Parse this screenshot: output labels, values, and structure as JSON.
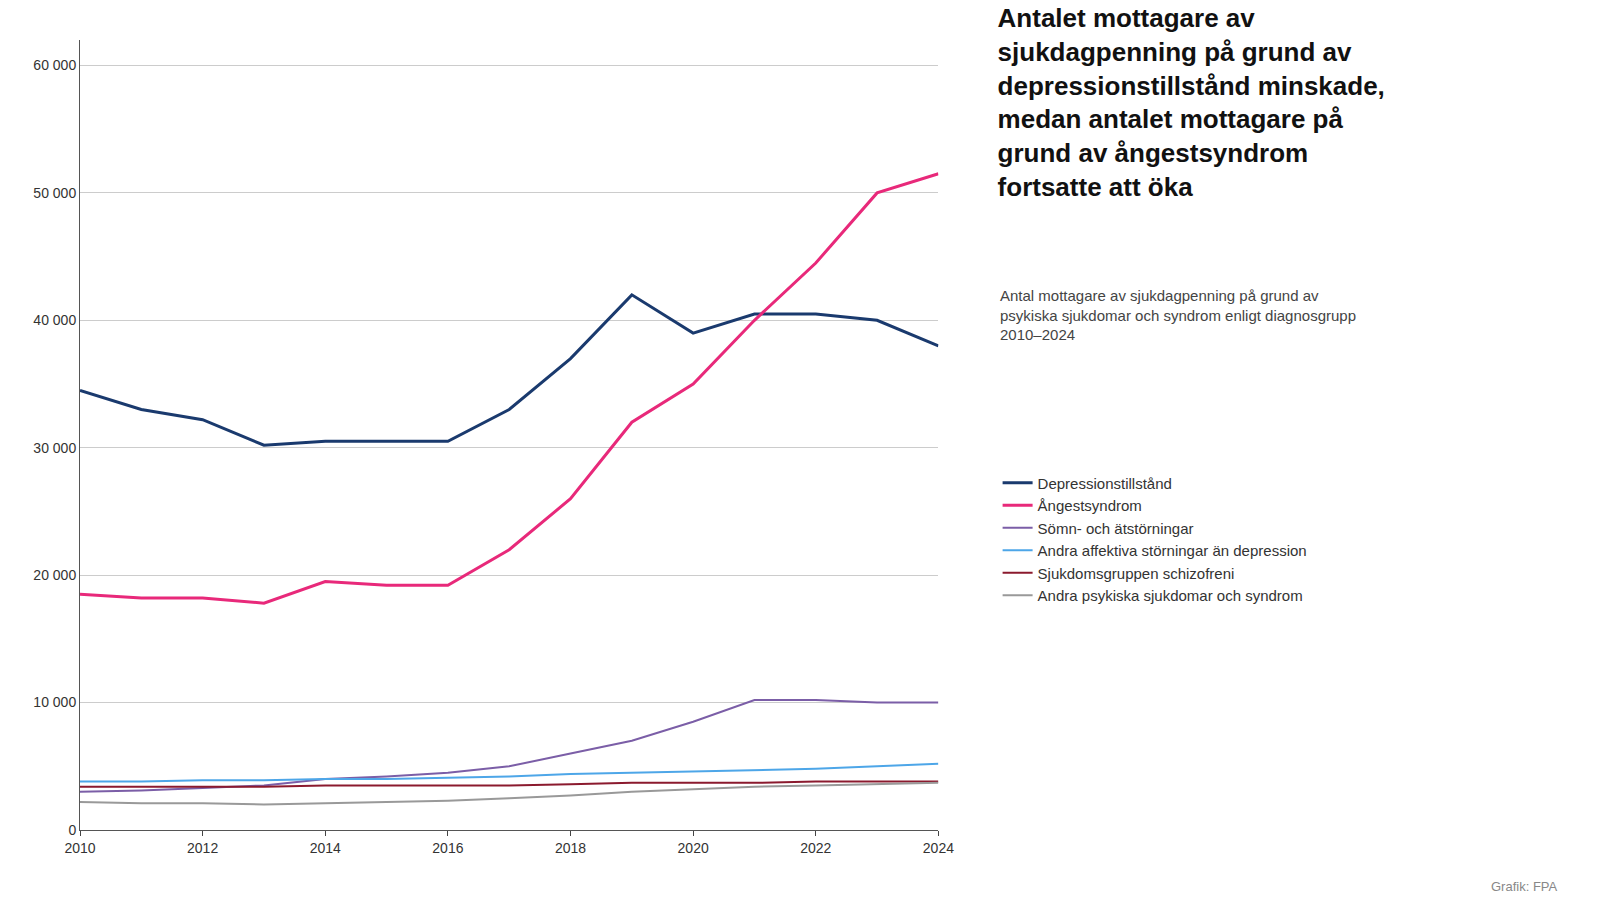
{
  "chart_data": {
    "type": "line",
    "title": "Antalet mottagare av\nsjukdagpenning på grund av\ndepressionstillstånd minskade,\nmedan antalet mottagare på\ngrund av ångestsyndrom\nfortsatte att öka",
    "subtitle": "Antal mottagare av sjukdagpenning på grund av\npsykiska sjukdomar och syndrom enligt diagnosgrupp\n2010–2024",
    "annotations": [
      "Grafik: FPA"
    ],
    "x": [
      2010,
      2011,
      2012,
      2013,
      2014,
      2015,
      2016,
      2017,
      2018,
      2019,
      2020,
      2021,
      2022,
      2023,
      2024
    ],
    "series": [
      {
        "name": "Depressionstillstånd",
        "color": "#1a3a6e",
        "values": [
          34500,
          33000,
          32200,
          30200,
          30500,
          30500,
          30500,
          33000,
          37000,
          42000,
          39000,
          40500,
          40500,
          40000,
          38000
        ]
      },
      {
        "name": "Ångestsyndrom",
        "color": "#e8297a",
        "values": [
          18500,
          18200,
          18200,
          17800,
          19500,
          19200,
          19200,
          22000,
          26000,
          32000,
          35000,
          40000,
          44500,
          50000,
          51500
        ]
      },
      {
        "name": "Sömn- och ätstörningar",
        "color": "#7b5ea7",
        "values": [
          3000,
          3100,
          3300,
          3500,
          4000,
          4200,
          4500,
          5000,
          6000,
          7000,
          8500,
          10200,
          10200,
          10000,
          10000
        ]
      },
      {
        "name": "Andra affektiva störningar än depression",
        "color": "#4da6e8",
        "values": [
          3800,
          3800,
          3900,
          3900,
          4000,
          4000,
          4100,
          4200,
          4400,
          4500,
          4600,
          4700,
          4800,
          5000,
          5200
        ]
      },
      {
        "name": "Sjukdomsgruppen schizofreni",
        "color": "#8b1a2e",
        "values": [
          3400,
          3400,
          3400,
          3400,
          3500,
          3500,
          3500,
          3500,
          3600,
          3700,
          3700,
          3700,
          3800,
          3800,
          3800
        ]
      },
      {
        "name": "Andra psykiska sjukdomar och syndrom",
        "color": "#999999",
        "values": [
          2200,
          2100,
          2100,
          2000,
          2100,
          2200,
          2300,
          2500,
          2700,
          3000,
          3200,
          3400,
          3500,
          3600,
          3700
        ]
      }
    ],
    "xlim": [
      2010,
      2024
    ],
    "xticks": [
      2010,
      2012,
      2014,
      2016,
      2018,
      2020,
      2022,
      2024
    ],
    "ylim": [
      0,
      62000
    ],
    "yticks": [
      0,
      {
        "value": 10000,
        "label": "10 000"
      },
      {
        "value": 20000,
        "label": "20 000"
      },
      {
        "value": 30000,
        "label": "30 000"
      },
      {
        "value": 40000,
        "label": "40 000"
      },
      {
        "value": 50000,
        "label": "50 000"
      },
      {
        "value": 60000,
        "label": "60 000"
      }
    ],
    "grid": true,
    "legend": "lower right"
  }
}
